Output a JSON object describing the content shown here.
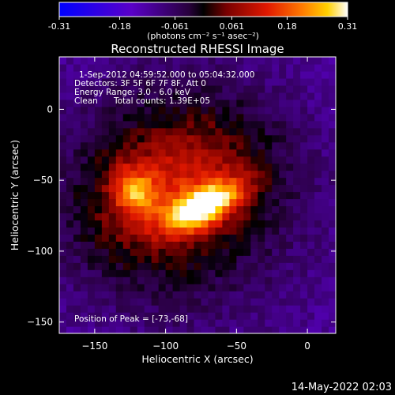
{
  "colorbar": {
    "ticks": [
      "-0.31",
      "-0.18",
      "-0.061",
      "0.061",
      "0.18",
      "0.31"
    ],
    "tick_values": [
      -0.31,
      -0.18,
      -0.061,
      0.061,
      0.18,
      0.31
    ],
    "range": [
      -0.31,
      0.31
    ],
    "unit_label": "(photons cm⁻² s⁻¹ asec⁻²)"
  },
  "chart_data": {
    "type": "heatmap",
    "title": "Reconstructed RHESSI Image",
    "xlabel": "Heliocentric X (arcsec)",
    "ylabel": "Heliocentric Y (arcsec)",
    "xlim": [
      -175,
      20
    ],
    "ylim": [
      -158,
      37
    ],
    "xticks": [
      -150,
      -100,
      -50,
      0
    ],
    "yticks": [
      -150,
      -100,
      -50,
      0
    ],
    "xtick_labels": [
      "−150",
      "−100",
      "−50",
      "0"
    ],
    "ytick_labels": [
      "−150",
      "−100",
      "−50",
      "0"
    ],
    "colormap": "hot-cold (blue-purple to red-yellow-white)",
    "sources": [
      {
        "x": -73,
        "y": -68,
        "relative_peak": 1.0
      },
      {
        "x": -122,
        "y": -58,
        "relative_peak": 0.55
      }
    ],
    "annotations": {
      "time": "1-Sep-2012 04:59:52.000 to 05:04:32.000",
      "detectors": "Detectors: 3F 5F 6F 7F 8F, Att 0",
      "energy": "Energy Range: 3.0 - 6.0 keV",
      "clean": "Clean",
      "counts": "Total counts: 1.39E+05",
      "peak": "Position of Peak = [-73,-68]"
    }
  },
  "footer": {
    "date": "14-May-2022 02:03"
  }
}
